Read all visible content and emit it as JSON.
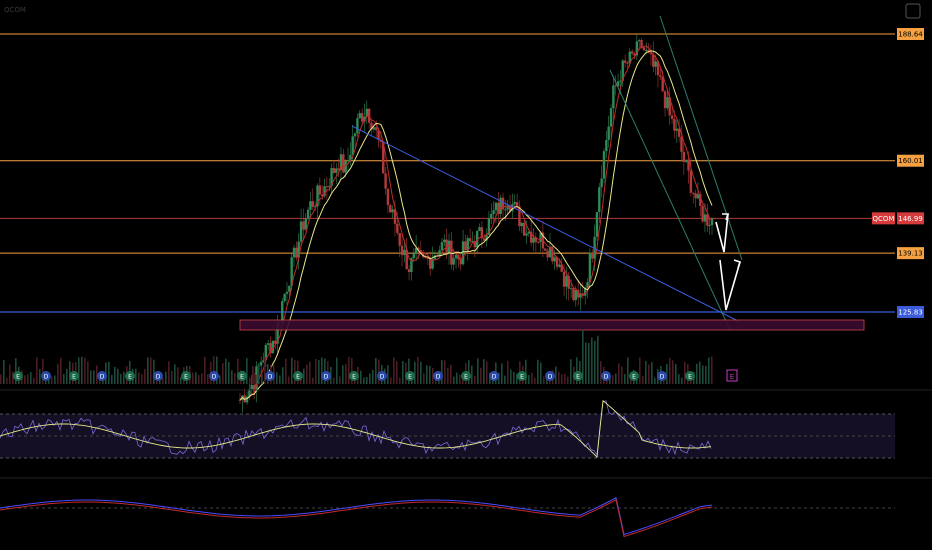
{
  "header": {
    "title": "QCOM",
    "sub1": "",
    "sub2": "",
    "rsi_label": "",
    "macd_label": ""
  },
  "levels": {
    "resistance_top": "188.64",
    "resistance_mid": "160.01",
    "current": "146.99",
    "current_ticker": "QCOM",
    "support_mid": "139.13",
    "support_low": "125.83"
  },
  "colors": {
    "orange": "#f5a142",
    "red_line": "#b23a3a",
    "blue_line": "#3b5bdb",
    "teal_line": "#2e7d6b",
    "yellow_ma": "#e8e88a",
    "red_ma": "#c22b2b",
    "rsi_purple": "#7b6ad8",
    "rsi_yellow": "#e8e88a",
    "macd_blue": "#4a4aff",
    "macd_red": "#c22b2b",
    "zone_fill": "#3a0b2e",
    "zone_border": "#e05050",
    "current_bg": "#d63a3a",
    "support_low_bg": "#3b5bdb"
  },
  "event_icons": [
    "E",
    "D",
    "E",
    "D",
    "E",
    "D",
    "E",
    "D",
    "E",
    "D",
    "E",
    "D",
    "E",
    "D",
    "E",
    "D",
    "E",
    "D",
    "E",
    "D",
    "E",
    "D",
    "E",
    "D",
    "E"
  ],
  "chart_data": {
    "type": "candlestick-like line",
    "ticker": "QCOM",
    "price_levels": [
      188.64,
      160.01,
      146.99,
      139.13,
      125.83
    ],
    "close_series": [
      106,
      108,
      110,
      115,
      118,
      120,
      128,
      134,
      140,
      146,
      150,
      152,
      154,
      157,
      160,
      158,
      165,
      170,
      172,
      168,
      162,
      150,
      146,
      140,
      136,
      138,
      137,
      138,
      140,
      141,
      139,
      138,
      140,
      142,
      143,
      145,
      148,
      150,
      152,
      149,
      146,
      144,
      143,
      142,
      140,
      138,
      134,
      130,
      128,
      132,
      140,
      155,
      165,
      175,
      180,
      182,
      184,
      186,
      183,
      180,
      176,
      170,
      166,
      160,
      155,
      150,
      147,
      146.99
    ],
    "ylim": [
      100,
      195
    ]
  }
}
